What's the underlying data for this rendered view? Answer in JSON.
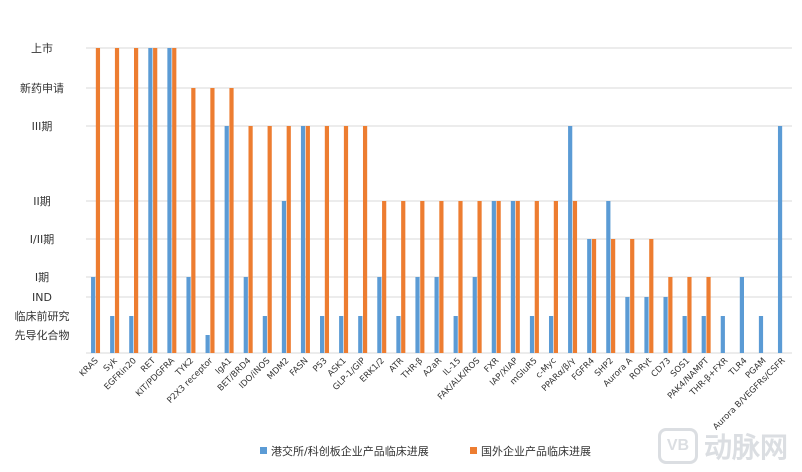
{
  "chart_data": {
    "type": "bar",
    "title": "",
    "xlabel": "",
    "ylabel": "",
    "y_levels": [
      "先导化合物",
      "临床前研究",
      "IND",
      "I期",
      "I/II期",
      "II期",
      "III期",
      "新药申请",
      "上市"
    ],
    "categories": [
      "KRAS",
      "Syk",
      "EGFRin20",
      "RET",
      "KIT/PDGFRA",
      "TYK2",
      "P2X3 receptor",
      "IgA1",
      "BET/BRD4",
      "IDO/iNOS",
      "MDM2",
      "FASN",
      "P53",
      "ASK1",
      "GLP-1/GIP",
      "ERK1/2",
      "ATR",
      "THR-β",
      "A2aR",
      "IL-15",
      "FAK/ALK/ROS",
      "FXR",
      "IAP/XIAP",
      "mGluR5",
      "c-Myc",
      "PPARα/β/γ",
      "FGFR4",
      "SHP2",
      "Aurora A",
      "RORγt",
      "CD73",
      "SOS1",
      "PAK4/NAMPT",
      "THR-β+FXR",
      "TLR4",
      "PGAM",
      "Aurora B/VEGFRs/CSFR"
    ],
    "series": [
      {
        "name": "港交所/科创板企业产品临床进展",
        "color": "#5b9bd5",
        "values": [
          "I期",
          "临床前研究",
          "临床前研究",
          "上市",
          "上市",
          "I期",
          "先导化合物",
          "III期",
          "I期",
          "临床前研究",
          "II期",
          "III期",
          "临床前研究",
          "临床前研究",
          "临床前研究",
          "I期",
          "临床前研究",
          "I期",
          "I期",
          "临床前研究",
          "I期",
          "II期",
          "II期",
          "临床前研究",
          "临床前研究",
          "III期",
          "I/II期",
          "II期",
          "IND",
          "IND",
          "IND",
          "临床前研究",
          "临床前研究",
          "临床前研究",
          "I期",
          "临床前研究",
          "III期"
        ]
      },
      {
        "name": "国外企业产品临床进展",
        "color": "#ed7d31",
        "values": [
          "上市",
          "上市",
          "上市",
          "上市",
          "上市",
          "新药申请",
          "新药申请",
          "新药申请",
          "III期",
          "III期",
          "III期",
          "III期",
          "III期",
          "III期",
          "III期",
          "II期",
          "II期",
          "II期",
          "II期",
          "II期",
          "II期",
          "II期",
          "II期",
          "II期",
          "II期",
          "II期",
          "I/II期",
          "I/II期",
          "I/II期",
          "I/II期",
          "I期",
          "I期",
          "I期",
          null,
          null,
          null,
          null
        ]
      }
    ],
    "grid": true,
    "legend_position": "bottom"
  },
  "watermark": {
    "logo": "VB",
    "text": "动脉网"
  }
}
